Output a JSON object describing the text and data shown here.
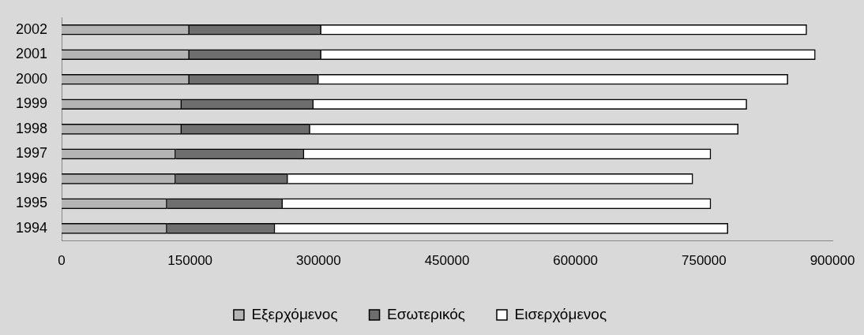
{
  "chart_data": {
    "type": "bar",
    "orientation": "horizontal",
    "stacked": true,
    "categories": [
      "2002",
      "2001",
      "2000",
      "1999",
      "1998",
      "1997",
      "1996",
      "1995",
      "1994"
    ],
    "series": [
      {
        "name": "Εξερχόμενος",
        "color": "#b4b4b4",
        "values": [
          149000,
          149000,
          149000,
          140000,
          140000,
          133000,
          133000,
          123000,
          123000
        ]
      },
      {
        "name": "Εσωτερικός",
        "color": "#6e6e6e",
        "values": [
          154000,
          154000,
          151000,
          154000,
          150000,
          150000,
          131000,
          135000,
          126000
        ]
      },
      {
        "name": "Εισερχόμενος",
        "color": "#ffffff",
        "values": [
          567000,
          577000,
          548000,
          506000,
          500000,
          475000,
          473000,
          500000,
          529000
        ]
      }
    ],
    "xlim": [
      0,
      900000
    ],
    "xticks": [
      0,
      150000,
      300000,
      450000,
      600000,
      750000,
      900000
    ],
    "grid": false,
    "legend": "bottom"
  }
}
